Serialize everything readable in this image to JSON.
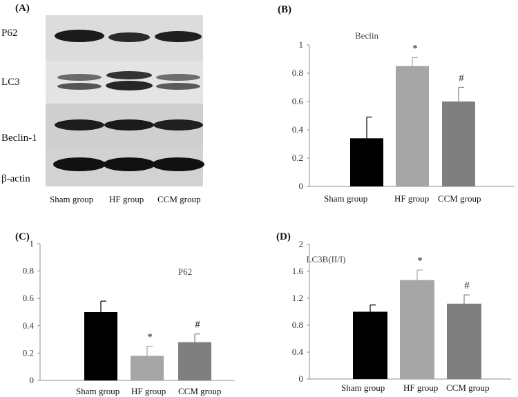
{
  "blot": {
    "panel_label": "(A)",
    "rows": [
      "P62",
      "LC3",
      "Beclin-1",
      "β-actin"
    ],
    "groups": [
      "Sham group",
      "HF group",
      "CCM group"
    ]
  },
  "chart_data": [
    {
      "panel_label": "(B)",
      "type": "bar",
      "title": "Beclin",
      "categories": [
        "Sham group",
        "HF group",
        "CCM group"
      ],
      "values": [
        0.34,
        0.85,
        0.6
      ],
      "errors": [
        0.15,
        0.06,
        0.1
      ],
      "significance": [
        "",
        "*",
        "#"
      ],
      "bar_colors": [
        "#000000",
        "#a6a6a6",
        "#7f7f7f"
      ],
      "ylim": [
        0,
        1
      ],
      "yticks": [
        0,
        0.2,
        0.4,
        0.6,
        0.8,
        1
      ],
      "ytick_labels": [
        "0",
        "0.2",
        "0.4",
        "0.6",
        "0.8",
        "1"
      ],
      "xlabel": "",
      "ylabel": ""
    },
    {
      "panel_label": "(C)",
      "type": "bar",
      "title": "P62",
      "categories": [
        "Sham group",
        "HF group",
        "CCM group"
      ],
      "values": [
        0.5,
        0.18,
        0.28
      ],
      "errors": [
        0.08,
        0.07,
        0.06
      ],
      "significance": [
        "",
        "*",
        "#"
      ],
      "bar_colors": [
        "#000000",
        "#a6a6a6",
        "#7f7f7f"
      ],
      "ylim": [
        0,
        1
      ],
      "yticks": [
        0,
        0.2,
        0.4,
        0.6,
        0.8,
        1
      ],
      "ytick_labels": [
        "0",
        "0.2",
        "0.4",
        "0.6",
        "0.8",
        "1"
      ],
      "xlabel": "",
      "ylabel": ""
    },
    {
      "panel_label": "(D)",
      "type": "bar",
      "title": "LC3B(II/I)",
      "categories": [
        "Sham group",
        "HF group",
        "CCM group"
      ],
      "values": [
        1.0,
        1.47,
        1.12
      ],
      "errors": [
        0.1,
        0.15,
        0.13
      ],
      "significance": [
        "",
        "*",
        "#"
      ],
      "bar_colors": [
        "#000000",
        "#a6a6a6",
        "#7f7f7f"
      ],
      "ylim": [
        0,
        2
      ],
      "yticks": [
        0,
        0.4,
        0.8,
        1.2,
        1.6,
        2
      ],
      "ytick_labels": [
        "0",
        "0.4",
        "0.8",
        "1.2",
        "1.6",
        "2"
      ],
      "xlabel": "",
      "ylabel": ""
    }
  ]
}
